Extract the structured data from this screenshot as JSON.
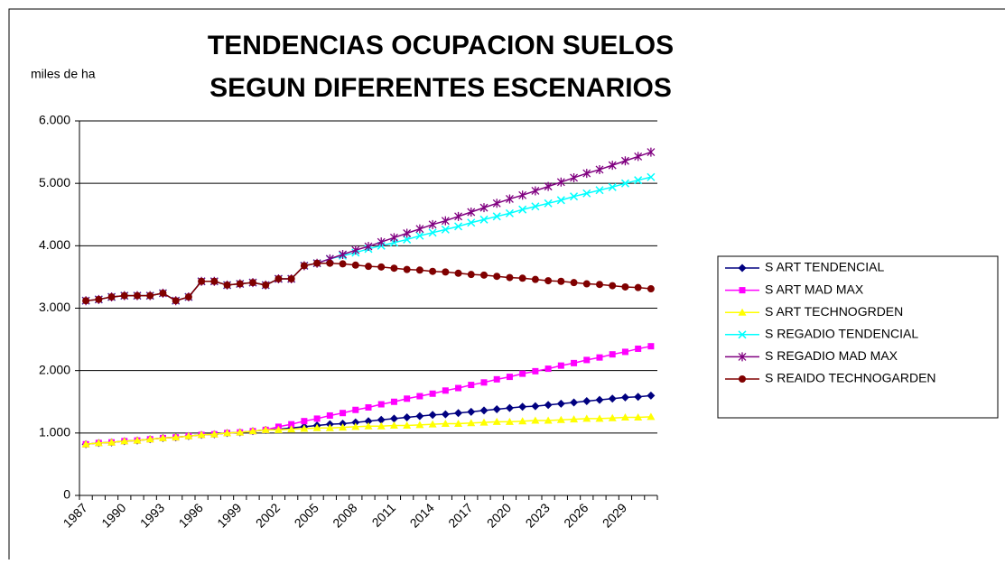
{
  "chart_data": {
    "type": "line",
    "title": "TENDENCIAS OCUPACION SUELOS",
    "subtitle": "SEGUN DIFERENTES  ESCENARIOS",
    "y_label": "miles de ha",
    "categories": [
      "1987",
      null,
      null,
      "1990",
      null,
      null,
      "1993",
      null,
      null,
      "1996",
      null,
      null,
      "1999",
      null,
      null,
      "2002",
      null,
      null,
      "2005",
      null,
      null,
      "2008",
      null,
      null,
      "2011",
      null,
      null,
      "2014",
      null,
      null,
      "2017",
      null,
      null,
      "2020",
      null,
      null,
      "2023",
      null,
      null,
      "2026",
      null,
      null,
      "2029",
      null,
      null
    ],
    "ylim": [
      0,
      6000
    ],
    "yticks": [
      0,
      {
        "value": 1000,
        "label": "1.000"
      },
      {
        "value": 2000,
        "label": "2.000"
      },
      {
        "value": 3000,
        "label": "3.000"
      },
      {
        "value": 4000,
        "label": "4.000"
      },
      {
        "value": 5000,
        "label": "5.000"
      },
      {
        "value": 6000,
        "label": "6.000"
      }
    ],
    "grid": true,
    "legend": "right",
    "series": [
      {
        "name": "S ART TENDENCIAL",
        "color": "#000080",
        "marker": "diamond",
        "values": [
          820,
          840,
          850,
          870,
          880,
          900,
          920,
          930,
          950,
          970,
          980,
          1000,
          1010,
          1030,
          1050,
          1060,
          1080,
          1100,
          1120,
          1140,
          1150,
          1170,
          1190,
          1210,
          1230,
          1250,
          1270,
          1290,
          1300,
          1320,
          1340,
          1360,
          1380,
          1400,
          1420,
          1430,
          1450,
          1470,
          1490,
          1510,
          1530,
          1550,
          1570,
          1580,
          1600
        ]
      },
      {
        "name": "S ART MAD MAX",
        "color": "#ff00ff",
        "marker": "square",
        "values": [
          820,
          840,
          850,
          870,
          880,
          900,
          920,
          930,
          950,
          970,
          980,
          1000,
          1010,
          1030,
          1050,
          1100,
          1140,
          1190,
          1230,
          1280,
          1320,
          1370,
          1410,
          1460,
          1500,
          1550,
          1590,
          1630,
          1680,
          1720,
          1770,
          1810,
          1860,
          1900,
          1950,
          1990,
          2030,
          2080,
          2120,
          2170,
          2210,
          2260,
          2300,
          2350,
          2390
        ]
      },
      {
        "name": "S ART TECHNOGRDEN",
        "color": "#ffff00",
        "marker": "triangle",
        "values": [
          820,
          840,
          850,
          870,
          880,
          900,
          920,
          930,
          950,
          970,
          980,
          1000,
          1010,
          1030,
          1050,
          1050,
          1060,
          1070,
          1080,
          1080,
          1090,
          1100,
          1110,
          1110,
          1120,
          1120,
          1130,
          1140,
          1150,
          1150,
          1160,
          1170,
          1180,
          1180,
          1190,
          1200,
          1200,
          1210,
          1220,
          1230,
          1230,
          1240,
          1250,
          1250,
          1260
        ]
      },
      {
        "name": "S REGADIO TENDENCIAL",
        "color": "#00ffff",
        "marker": "x",
        "values": [
          3120,
          3140,
          3180,
          3200,
          3200,
          3200,
          3240,
          3120,
          3180,
          3430,
          3430,
          3370,
          3390,
          3410,
          3370,
          3470,
          3470,
          3680,
          3720,
          3790,
          3840,
          3890,
          3950,
          4000,
          4050,
          4100,
          4160,
          4210,
          4260,
          4310,
          4370,
          4420,
          4470,
          4520,
          4580,
          4630,
          4680,
          4730,
          4790,
          4840,
          4890,
          4940,
          5000,
          5050,
          5100
        ]
      },
      {
        "name": "S REGADIO MAD MAX",
        "color": "#800080",
        "marker": "star",
        "values": [
          3120,
          3140,
          3180,
          3200,
          3200,
          3200,
          3240,
          3120,
          3180,
          3430,
          3430,
          3370,
          3390,
          3410,
          3370,
          3470,
          3470,
          3680,
          3720,
          3790,
          3860,
          3930,
          3990,
          4060,
          4130,
          4200,
          4270,
          4340,
          4400,
          4470,
          4540,
          4610,
          4680,
          4750,
          4810,
          4880,
          4950,
          5020,
          5090,
          5160,
          5220,
          5290,
          5360,
          5430,
          5500
        ]
      },
      {
        "name": "S REAIDO TECHNOGARDEN",
        "color": "#800000",
        "marker": "circle",
        "values": [
          3120,
          3140,
          3180,
          3200,
          3200,
          3200,
          3240,
          3120,
          3180,
          3430,
          3430,
          3370,
          3390,
          3410,
          3370,
          3470,
          3470,
          3680,
          3720,
          3720,
          3710,
          3690,
          3670,
          3660,
          3640,
          3620,
          3610,
          3590,
          3580,
          3560,
          3540,
          3530,
          3510,
          3490,
          3480,
          3460,
          3440,
          3430,
          3410,
          3390,
          3380,
          3360,
          3340,
          3330,
          3310
        ]
      }
    ]
  }
}
